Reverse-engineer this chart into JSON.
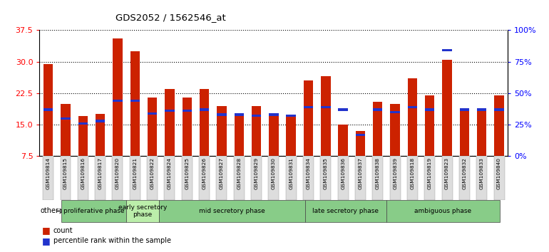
{
  "title": "GDS2052 / 1562546_at",
  "samples": [
    "GSM109814",
    "GSM109815",
    "GSM109816",
    "GSM109817",
    "GSM109820",
    "GSM109821",
    "GSM109822",
    "GSM109824",
    "GSM109825",
    "GSM109826",
    "GSM109827",
    "GSM109828",
    "GSM109829",
    "GSM109830",
    "GSM109831",
    "GSM109834",
    "GSM109835",
    "GSM109836",
    "GSM109837",
    "GSM109838",
    "GSM109839",
    "GSM109818",
    "GSM109819",
    "GSM109823",
    "GSM109832",
    "GSM109833",
    "GSM109840"
  ],
  "count_values": [
    29.5,
    20.0,
    17.0,
    17.5,
    35.5,
    32.5,
    21.5,
    23.5,
    21.5,
    23.5,
    19.5,
    17.0,
    19.5,
    17.5,
    17.0,
    25.5,
    26.5,
    15.0,
    13.5,
    20.5,
    20.0,
    26.0,
    22.0,
    30.5,
    19.0,
    18.5,
    22.0
  ],
  "percentile_values": [
    37,
    30,
    26,
    28,
    44,
    44,
    34,
    36,
    36,
    37,
    33,
    33,
    32,
    33,
    32,
    39,
    39,
    37,
    17,
    37,
    35,
    39,
    37,
    84,
    37,
    37,
    37
  ],
  "ylim_left": [
    7.5,
    37.5
  ],
  "ylim_right": [
    0,
    100
  ],
  "yticks_left": [
    7.5,
    15.0,
    22.5,
    30.0,
    37.5
  ],
  "yticks_right": [
    0,
    25,
    50,
    75,
    100
  ],
  "bar_color": "#CC2200",
  "percentile_color": "#2233CC",
  "bar_width": 0.55,
  "phases": [
    {
      "label": "proliferative phase",
      "start": 0,
      "end": 3,
      "color": "#88CC88"
    },
    {
      "label": "early secretory\nphase",
      "start": 4,
      "end": 5,
      "color": "#BBEEAA"
    },
    {
      "label": "mid secretory phase",
      "start": 6,
      "end": 14,
      "color": "#88CC88"
    },
    {
      "label": "late secretory phase",
      "start": 15,
      "end": 19,
      "color": "#88CC88"
    },
    {
      "label": "ambiguous phase",
      "start": 20,
      "end": 26,
      "color": "#88CC88"
    }
  ]
}
